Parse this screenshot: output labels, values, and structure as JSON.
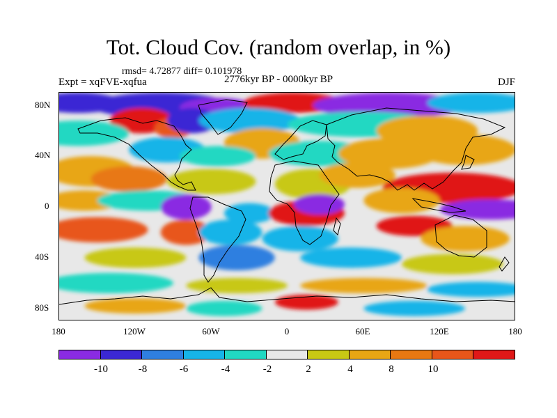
{
  "title": "Tot. Cloud Cov. (random overlap, in %)",
  "stats": "rmsd= 4.72877 diff= 0.101978",
  "experiment": "Expt = xqFVE-xqfua",
  "period": "2776kyr BP - 0000kyr BP",
  "season": "DJF",
  "axes": {
    "y_ticks": [
      "80N",
      "40N",
      "0",
      "40S",
      "80S"
    ],
    "x_ticks": [
      "180",
      "120W",
      "60W",
      "0",
      "60E",
      "120E",
      "180"
    ]
  },
  "colorbar": {
    "colors": [
      "#8a2be2",
      "#3b28d4",
      "#2f7fe0",
      "#16b4e8",
      "#20d8c2",
      "#e8e8e8",
      "#c8c814",
      "#e8a614",
      "#e87812",
      "#e8561a",
      "#e01818"
    ],
    "labels": [
      "-10",
      "-8",
      "-6",
      "-4",
      "-2",
      "2",
      "4",
      "8",
      "10"
    ]
  },
  "map_blobs": [
    {
      "lon": -165,
      "lat": 82,
      "w": 35,
      "h": 8,
      "level": 1
    },
    {
      "lon": -100,
      "lat": 80,
      "w": 55,
      "h": 10,
      "level": 1
    },
    {
      "lon": -55,
      "lat": 78,
      "w": 30,
      "h": 8,
      "level": 0
    },
    {
      "lon": 5,
      "lat": 82,
      "w": 40,
      "h": 8,
      "level": 10
    },
    {
      "lon": 80,
      "lat": 80,
      "w": 60,
      "h": 10,
      "level": 0
    },
    {
      "lon": 150,
      "lat": 82,
      "w": 40,
      "h": 8,
      "level": 3
    },
    {
      "lon": -115,
      "lat": 68,
      "w": 25,
      "h": 10,
      "level": 10
    },
    {
      "lon": -90,
      "lat": 62,
      "w": 15,
      "h": 8,
      "level": 9
    },
    {
      "lon": -75,
      "lat": 68,
      "w": 20,
      "h": 10,
      "level": 1
    },
    {
      "lon": -30,
      "lat": 68,
      "w": 40,
      "h": 10,
      "level": 3
    },
    {
      "lon": 60,
      "lat": 65,
      "w": 60,
      "h": 10,
      "level": 4
    },
    {
      "lon": 110,
      "lat": 60,
      "w": 40,
      "h": 12,
      "level": 7
    },
    {
      "lon": -165,
      "lat": 58,
      "w": 40,
      "h": 10,
      "level": 4
    },
    {
      "lon": -20,
      "lat": 50,
      "w": 30,
      "h": 12,
      "level": 7
    },
    {
      "lon": 25,
      "lat": 42,
      "w": 40,
      "h": 10,
      "level": 4
    },
    {
      "lon": 80,
      "lat": 42,
      "w": 40,
      "h": 12,
      "level": 7
    },
    {
      "lon": 140,
      "lat": 45,
      "w": 40,
      "h": 12,
      "level": 7
    },
    {
      "lon": -95,
      "lat": 45,
      "w": 30,
      "h": 10,
      "level": 3
    },
    {
      "lon": -55,
      "lat": 40,
      "w": 30,
      "h": 8,
      "level": 4
    },
    {
      "lon": -155,
      "lat": 28,
      "w": 35,
      "h": 12,
      "level": 7
    },
    {
      "lon": -125,
      "lat": 22,
      "w": 30,
      "h": 10,
      "level": 8
    },
    {
      "lon": -60,
      "lat": 20,
      "w": 35,
      "h": 10,
      "level": 6
    },
    {
      "lon": 20,
      "lat": 18,
      "w": 30,
      "h": 12,
      "level": 6
    },
    {
      "lon": 55,
      "lat": 25,
      "w": 30,
      "h": 10,
      "level": 7
    },
    {
      "lon": 130,
      "lat": 15,
      "w": 55,
      "h": 12,
      "level": 10
    },
    {
      "lon": 90,
      "lat": 5,
      "w": 30,
      "h": 10,
      "level": 7
    },
    {
      "lon": -160,
      "lat": 5,
      "w": 30,
      "h": 8,
      "level": 7
    },
    {
      "lon": -110,
      "lat": 5,
      "w": 40,
      "h": 8,
      "level": 4
    },
    {
      "lon": -80,
      "lat": 0,
      "w": 20,
      "h": 10,
      "level": 0
    },
    {
      "lon": -30,
      "lat": -5,
      "w": 20,
      "h": 8,
      "level": 3
    },
    {
      "lon": 15,
      "lat": -5,
      "w": 30,
      "h": 10,
      "level": 10
    },
    {
      "lon": 25,
      "lat": 2,
      "w": 20,
      "h": 8,
      "level": 0
    },
    {
      "lon": 160,
      "lat": -2,
      "w": 40,
      "h": 8,
      "level": 0
    },
    {
      "lon": -150,
      "lat": -18,
      "w": 40,
      "h": 10,
      "level": 9
    },
    {
      "lon": -80,
      "lat": -20,
      "w": 20,
      "h": 10,
      "level": 9
    },
    {
      "lon": -45,
      "lat": -20,
      "w": 25,
      "h": 10,
      "level": 3
    },
    {
      "lon": 10,
      "lat": -25,
      "w": 30,
      "h": 10,
      "level": 3
    },
    {
      "lon": 100,
      "lat": -15,
      "w": 30,
      "h": 8,
      "level": 10
    },
    {
      "lon": 140,
      "lat": -25,
      "w": 35,
      "h": 10,
      "level": 7
    },
    {
      "lon": -120,
      "lat": -40,
      "w": 40,
      "h": 8,
      "level": 6
    },
    {
      "lon": -40,
      "lat": -40,
      "w": 30,
      "h": 10,
      "level": 2
    },
    {
      "lon": 50,
      "lat": -40,
      "w": 40,
      "h": 8,
      "level": 3
    },
    {
      "lon": 130,
      "lat": -45,
      "w": 40,
      "h": 8,
      "level": 6
    },
    {
      "lon": -140,
      "lat": -60,
      "w": 50,
      "h": 8,
      "level": 4
    },
    {
      "lon": -40,
      "lat": -62,
      "w": 40,
      "h": 6,
      "level": 6
    },
    {
      "lon": 60,
      "lat": -62,
      "w": 50,
      "h": 6,
      "level": 7
    },
    {
      "lon": 150,
      "lat": -65,
      "w": 40,
      "h": 6,
      "level": 3
    },
    {
      "lon": -120,
      "lat": -78,
      "w": 40,
      "h": 6,
      "level": 7
    },
    {
      "lon": 15,
      "lat": -75,
      "w": 25,
      "h": 6,
      "level": 10
    },
    {
      "lon": -50,
      "lat": -80,
      "w": 30,
      "h": 6,
      "level": 4
    },
    {
      "lon": 100,
      "lat": -80,
      "w": 40,
      "h": 6,
      "level": 3
    }
  ]
}
